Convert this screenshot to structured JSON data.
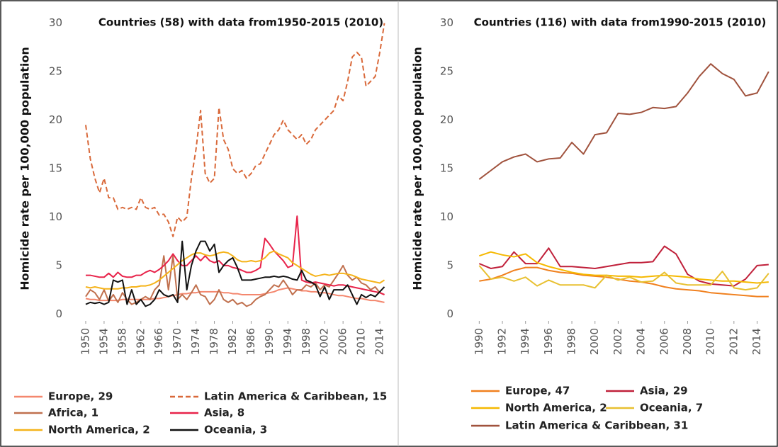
{
  "chart_data": [
    {
      "type": "line",
      "title": "Countries (58) with data from1950-2015 (2010)",
      "y_label": "Homicide rate per 100,000 population",
      "x": [
        1950,
        1951,
        1952,
        1953,
        1954,
        1955,
        1956,
        1957,
        1958,
        1959,
        1960,
        1961,
        1962,
        1963,
        1964,
        1965,
        1966,
        1967,
        1968,
        1969,
        1970,
        1971,
        1972,
        1973,
        1974,
        1975,
        1976,
        1977,
        1978,
        1979,
        1980,
        1981,
        1982,
        1983,
        1984,
        1985,
        1986,
        1987,
        1988,
        1989,
        1990,
        1991,
        1992,
        1993,
        1994,
        1995,
        1996,
        1997,
        1998,
        1999,
        2000,
        2001,
        2002,
        2003,
        2004,
        2005,
        2006,
        2007,
        2008,
        2009,
        2010,
        2011,
        2012,
        2013,
        2014,
        2015
      ],
      "xlim": [
        1948,
        2016
      ],
      "xticks": [
        1950,
        1954,
        1958,
        1962,
        1966,
        1970,
        1974,
        1978,
        1982,
        1986,
        1990,
        1994,
        1998,
        2002,
        2006,
        2010,
        2014
      ],
      "ylim": [
        -1,
        31
      ],
      "yticks": [
        0,
        5,
        10,
        15,
        20,
        25,
        30
      ],
      "grid": false,
      "series": [
        {
          "name": "Europe, 29",
          "color": "#f4876e",
          "dashed": false,
          "values": [
            1.6,
            1.5,
            1.5,
            1.4,
            1.4,
            1.4,
            1.4,
            1.4,
            1.5,
            1.5,
            1.5,
            1.5,
            1.5,
            1.5,
            1.5,
            1.6,
            1.6,
            1.7,
            1.8,
            1.9,
            2,
            2.1,
            2.1,
            2.2,
            2.2,
            2.3,
            2.3,
            2.3,
            2.3,
            2.3,
            2.2,
            2.2,
            2.1,
            2.1,
            2,
            2,
            2,
            2,
            2,
            2.1,
            2.2,
            2.3,
            2.5,
            2.6,
            2.7,
            2.6,
            2.5,
            2.4,
            2.4,
            2.3,
            2.3,
            2.2,
            2.2,
            2.1,
            2,
            1.9,
            1.9,
            1.8,
            1.7,
            1.6,
            1.6,
            1.5,
            1.4,
            1.4,
            1.3,
            1.2
          ]
        },
        {
          "name": "Latin America & Caribbean, 15",
          "color": "#d9693a",
          "dashed": true,
          "values": [
            19.5,
            16,
            14,
            12.5,
            14,
            12,
            12,
            10.8,
            11,
            10.8,
            11,
            10.8,
            12,
            11,
            10.8,
            11,
            10.2,
            10.3,
            9.5,
            8,
            10,
            9.5,
            10,
            14,
            17,
            21,
            14.5,
            13.5,
            14,
            21.3,
            18,
            17,
            15,
            14.5,
            14.8,
            14,
            14.5,
            15.3,
            15.5,
            16.5,
            17.5,
            18.5,
            19,
            20,
            19,
            18.5,
            18,
            18.5,
            17.5,
            18,
            19,
            19.5,
            20,
            20.5,
            21,
            22.5,
            22,
            24,
            26.5,
            27,
            26.5,
            23.5,
            24,
            24.5,
            27,
            30
          ]
        },
        {
          "name": "Africa, 1",
          "color": "#c0704e",
          "dashed": false,
          "values": [
            1.8,
            2.5,
            2.2,
            1.5,
            2.5,
            1.3,
            2,
            1.2,
            2.2,
            1.5,
            1,
            1.2,
            1.5,
            1.8,
            1.5,
            2.5,
            3,
            6,
            2.5,
            6,
            1.5,
            2,
            1.5,
            2.2,
            3,
            2,
            1.8,
            1,
            1.5,
            2.5,
            1.5,
            1.2,
            1.5,
            1,
            1.2,
            0.8,
            1,
            1.5,
            1.8,
            2,
            2.5,
            3,
            2.8,
            3.5,
            2.8,
            2,
            2.5,
            2.5,
            3,
            2.8,
            3.2,
            2.5,
            3,
            2.8,
            3.5,
            4.2,
            5,
            4,
            3.5,
            3.8,
            3.2,
            3,
            2.5,
            2.8,
            2.2,
            2
          ]
        },
        {
          "name": "Asia, 8",
          "color": "#e8234a",
          "dashed": false,
          "values": [
            4,
            4,
            3.9,
            3.8,
            3.8,
            4.2,
            3.8,
            4.3,
            3.9,
            3.8,
            3.8,
            4,
            4,
            4.3,
            4.5,
            4.3,
            4.6,
            5,
            5.5,
            6.2,
            5.5,
            5,
            5,
            5.5,
            6,
            5.5,
            6,
            5.5,
            5.3,
            5.5,
            5,
            5,
            4.8,
            4.7,
            4.5,
            4.3,
            4.3,
            4.5,
            4.8,
            7.8,
            7.2,
            6.5,
            6,
            5.5,
            4.8,
            5,
            10.1,
            3.5,
            3.3,
            3.2,
            3.3,
            3.2,
            3.1,
            3,
            2.9,
            3,
            3,
            2.9,
            2.8,
            2.7,
            2.6,
            2.5,
            2.4,
            2.3,
            2.2,
            2
          ]
        },
        {
          "name": "North America, 2",
          "color": "#f5b31a",
          "dashed": false,
          "values": [
            2.8,
            2.7,
            2.8,
            2.7,
            2.6,
            2.6,
            2.6,
            2.6,
            2.7,
            2.7,
            2.8,
            2.8,
            2.9,
            2.9,
            3,
            3.2,
            3.5,
            3.9,
            4.3,
            4.7,
            5.1,
            5.5,
            5.8,
            6.1,
            6.3,
            6.3,
            6.1,
            6,
            6.1,
            6.3,
            6.4,
            6.3,
            6,
            5.6,
            5.4,
            5.4,
            5.5,
            5.4,
            5.5,
            5.8,
            6.3,
            6.5,
            6.2,
            6,
            5.8,
            5.3,
            5,
            4.7,
            4.4,
            4.1,
            3.9,
            4,
            4.1,
            4,
            4.1,
            4.2,
            4.2,
            4.1,
            4,
            3.8,
            3.6,
            3.5,
            3.4,
            3.3,
            3.2,
            3.5
          ]
        },
        {
          "name": "Oceania, 3",
          "color": "#111111",
          "dashed": false,
          "values": [
            1,
            1.2,
            1.1,
            1.2,
            1,
            1.2,
            3.5,
            3.3,
            3.5,
            1,
            2.5,
            1,
            1.5,
            0.8,
            1,
            1.5,
            2.5,
            2,
            1.8,
            2,
            1.2,
            7.5,
            2.5,
            5,
            6.5,
            7.5,
            7.5,
            6.5,
            7.2,
            4.3,
            5,
            5.5,
            5.8,
            4.8,
            3.5,
            3.5,
            3.5,
            3.6,
            3.7,
            3.8,
            3.8,
            3.9,
            3.8,
            3.9,
            3.8,
            3.6,
            3.5,
            4.5,
            3.5,
            3.3,
            3,
            1.8,
            2.8,
            1.5,
            2.5,
            2.5,
            2.5,
            3,
            2,
            1,
            2,
            1.7,
            2,
            1.8,
            2.3,
            2.8
          ]
        }
      ]
    },
    {
      "type": "line",
      "title": "Countries (116) with data from1990-2015 (2010)",
      "y_label": "Homicide rate per 100,000 population",
      "x": [
        1990,
        1991,
        1992,
        1993,
        1994,
        1995,
        1996,
        1997,
        1998,
        1999,
        2000,
        2001,
        2002,
        2003,
        2004,
        2005,
        2006,
        2007,
        2008,
        2009,
        2010,
        2011,
        2012,
        2013,
        2014,
        2015
      ],
      "xlim": [
        1989,
        2015.5
      ],
      "xticks": [
        1990,
        1992,
        1994,
        1996,
        1998,
        2000,
        2002,
        2004,
        2006,
        2008,
        2010,
        2012,
        2014
      ],
      "ylim": [
        -1,
        31
      ],
      "yticks": [
        0,
        5,
        10,
        15,
        20,
        25,
        30
      ],
      "grid": false,
      "series": [
        {
          "name": "Europe, 47",
          "color": "#f0801e",
          "dashed": false,
          "values": [
            3.4,
            3.6,
            4,
            4.5,
            4.8,
            4.8,
            4.5,
            4.3,
            4.2,
            4,
            3.9,
            3.8,
            3.6,
            3.4,
            3.3,
            3.1,
            2.8,
            2.6,
            2.5,
            2.4,
            2.2,
            2.1,
            2,
            1.9,
            1.8,
            1.8
          ]
        },
        {
          "name": "Asia, 29",
          "color": "#c0203a",
          "dashed": false,
          "values": [
            5.2,
            4.7,
            4.9,
            6.4,
            5.2,
            5.2,
            6.8,
            4.9,
            4.9,
            4.8,
            4.7,
            4.9,
            5.1,
            5.3,
            5.3,
            5.4,
            7,
            6.2,
            4.1,
            3.4,
            3.1,
            3,
            2.9,
            3.6,
            5,
            5.1
          ]
        },
        {
          "name": "North America, 2",
          "color": "#f5b800",
          "dashed": false,
          "values": [
            6,
            6.4,
            6.1,
            5.9,
            6.2,
            5.3,
            4.9,
            4.6,
            4.3,
            4.1,
            4,
            4,
            3.9,
            3.9,
            3.8,
            3.9,
            4,
            3.9,
            3.8,
            3.6,
            3.5,
            3.4,
            3.4,
            3.3,
            3.2,
            3.3
          ]
        },
        {
          "name": "Oceania, 7",
          "color": "#e8c030",
          "dashed": false,
          "values": [
            5,
            3.6,
            3.8,
            3.4,
            3.8,
            2.9,
            3.5,
            3,
            3,
            3,
            2.7,
            4,
            3.5,
            3.8,
            3.3,
            3.4,
            4.3,
            3.2,
            3,
            3,
            3,
            4.4,
            2.7,
            2.5,
            2.7,
            4.2
          ]
        },
        {
          "name": "Latin America & Caribbean, 31",
          "color": "#a0523d",
          "dashed": false,
          "values": [
            13.9,
            14.8,
            15.7,
            16.2,
            16.5,
            15.7,
            16,
            16.1,
            17.7,
            16.5,
            18.5,
            18.7,
            20.7,
            20.6,
            20.8,
            21.3,
            21.2,
            21.4,
            22.8,
            24.5,
            25.8,
            24.8,
            24.2,
            22.5,
            22.8,
            25
          ]
        }
      ]
    }
  ]
}
